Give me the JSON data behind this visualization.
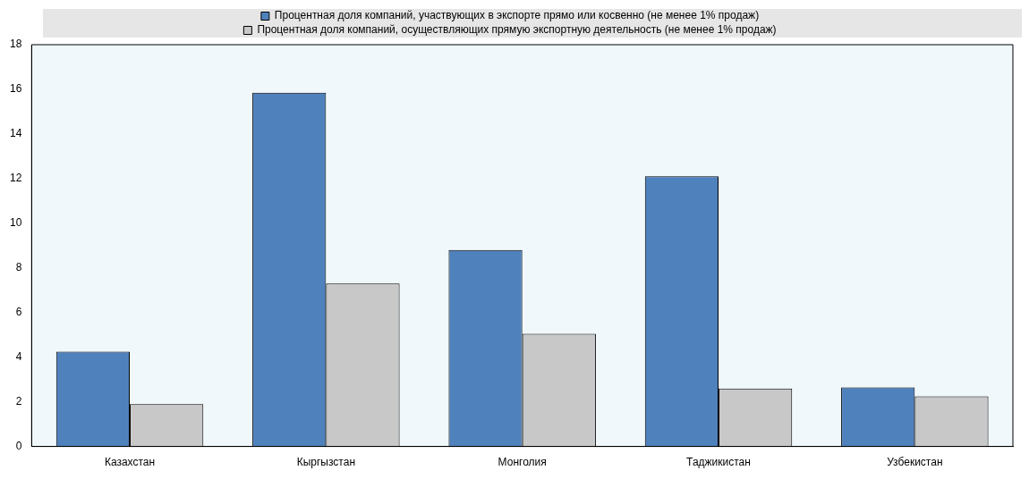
{
  "chart_data": {
    "type": "bar",
    "categories": [
      "Казахстан",
      "Кыргызстан",
      "Монголия",
      "Таджикистан",
      "Узбекистан"
    ],
    "series": [
      {
        "name": "Процентная доля компаний, участвующих в экспорте прямо или косвенно (не менее 1% продаж)",
        "color": "#4f81bd",
        "values": [
          4.25,
          15.85,
          8.8,
          12.1,
          2.65
        ]
      },
      {
        "name": "Процентная доля компаний, осуществляющих прямую экспортную деятельность (не менее 1% продаж)",
        "color": "#c8c8c8",
        "values": [
          1.9,
          7.3,
          5.05,
          2.6,
          2.25
        ]
      }
    ],
    "ylim": [
      0,
      18
    ],
    "yticks": [
      0,
      2,
      4,
      6,
      8,
      10,
      12,
      14,
      16,
      18
    ],
    "grid": false,
    "legend": "top"
  }
}
